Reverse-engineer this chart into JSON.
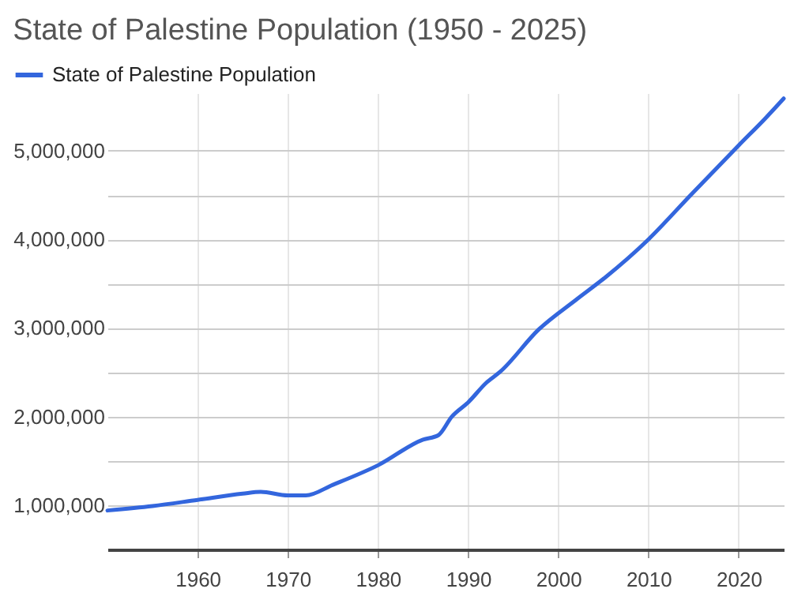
{
  "chart_data": {
    "type": "line",
    "title": "State of Palestine Population (1950 - 2025)",
    "x": [
      1950,
      1955,
      1960,
      1965,
      1967,
      1970,
      1972,
      1975,
      1980,
      1985,
      1986.7,
      1988.2,
      1990,
      1992,
      1993.6,
      1997.8,
      2002,
      2005.2,
      2010,
      2014.5,
      2020,
      2023,
      2025
    ],
    "series": [
      {
        "name": "State of Palestine Population",
        "color": "#3366dd",
        "values": [
          940000,
          990000,
          1060000,
          1130000,
          1150000,
          1110000,
          1110000,
          1230000,
          1450000,
          1740000,
          1790000,
          2000000,
          2160000,
          2380000,
          2510000,
          2980000,
          3320000,
          3570000,
          4000000,
          4480000,
          5060000,
          5370000,
          5590000
        ]
      }
    ],
    "xlim": [
      1950,
      2025
    ],
    "xticks": [
      1960,
      1970,
      1980,
      1990,
      2000,
      2010,
      2020
    ],
    "ylim": [
      500000,
      5650000
    ],
    "yticks": [
      {
        "value": 1000000,
        "label": "1,000,000"
      },
      {
        "value": 1500000,
        "label": null
      },
      {
        "value": 2000000,
        "label": "2,000,000"
      },
      {
        "value": 2500000,
        "label": null
      },
      {
        "value": 3000000,
        "label": "3,000,000"
      },
      {
        "value": 3500000,
        "label": null
      },
      {
        "value": 4000000,
        "label": "4,000,000"
      },
      {
        "value": 4500000,
        "label": null
      },
      {
        "value": 5000000,
        "label": "5,000,000"
      }
    ],
    "grid": true,
    "legend": "top left",
    "marker": "none",
    "line_style": "solid"
  }
}
